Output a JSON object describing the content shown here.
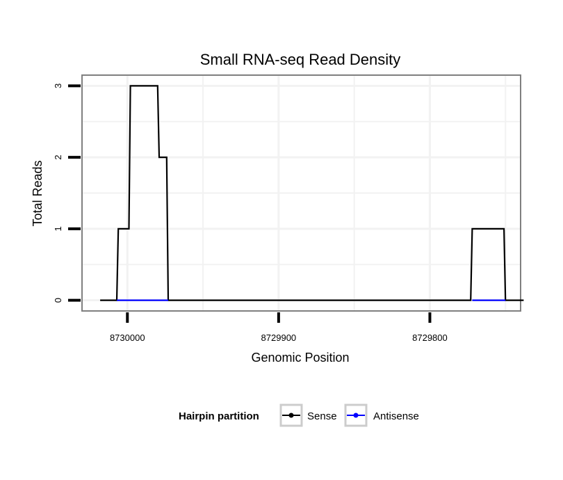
{
  "chart_data": {
    "type": "line",
    "title": "Small RNA-seq Read Density",
    "xlabel": "Genomic Position",
    "ylabel": "Total Reads",
    "x_reversed": true,
    "xlim": [
      8730030,
      8729740
    ],
    "ylim": [
      -0.15,
      3.15
    ],
    "x_ticks": [
      8730000,
      8729900,
      8729800
    ],
    "x_tick_labels": [
      "8730000",
      "8729900",
      "8729800"
    ],
    "y_ticks": [
      0,
      1,
      2,
      3
    ],
    "y_tick_labels": [
      "0",
      "1",
      "2",
      "3"
    ],
    "grid": true,
    "legend": {
      "title": "Hairpin partition",
      "position": "bottom"
    },
    "series": [
      {
        "name": "Sense",
        "color": "#000000",
        "x": [
          8730018,
          8730007,
          8730006,
          8729999,
          8729998,
          8729980,
          8729979,
          8729974,
          8729973,
          8729773,
          8729772,
          8729751,
          8729750,
          8729738
        ],
        "values": [
          0,
          0,
          1,
          1,
          3,
          3,
          2,
          2,
          0,
          0,
          1,
          1,
          0,
          0
        ]
      },
      {
        "name": "Antisense",
        "color": "#0000ff",
        "x": [
          8730007,
          8729973,
          8729772,
          8729750
        ],
        "values": [
          0,
          0,
          0,
          0
        ]
      }
    ]
  }
}
